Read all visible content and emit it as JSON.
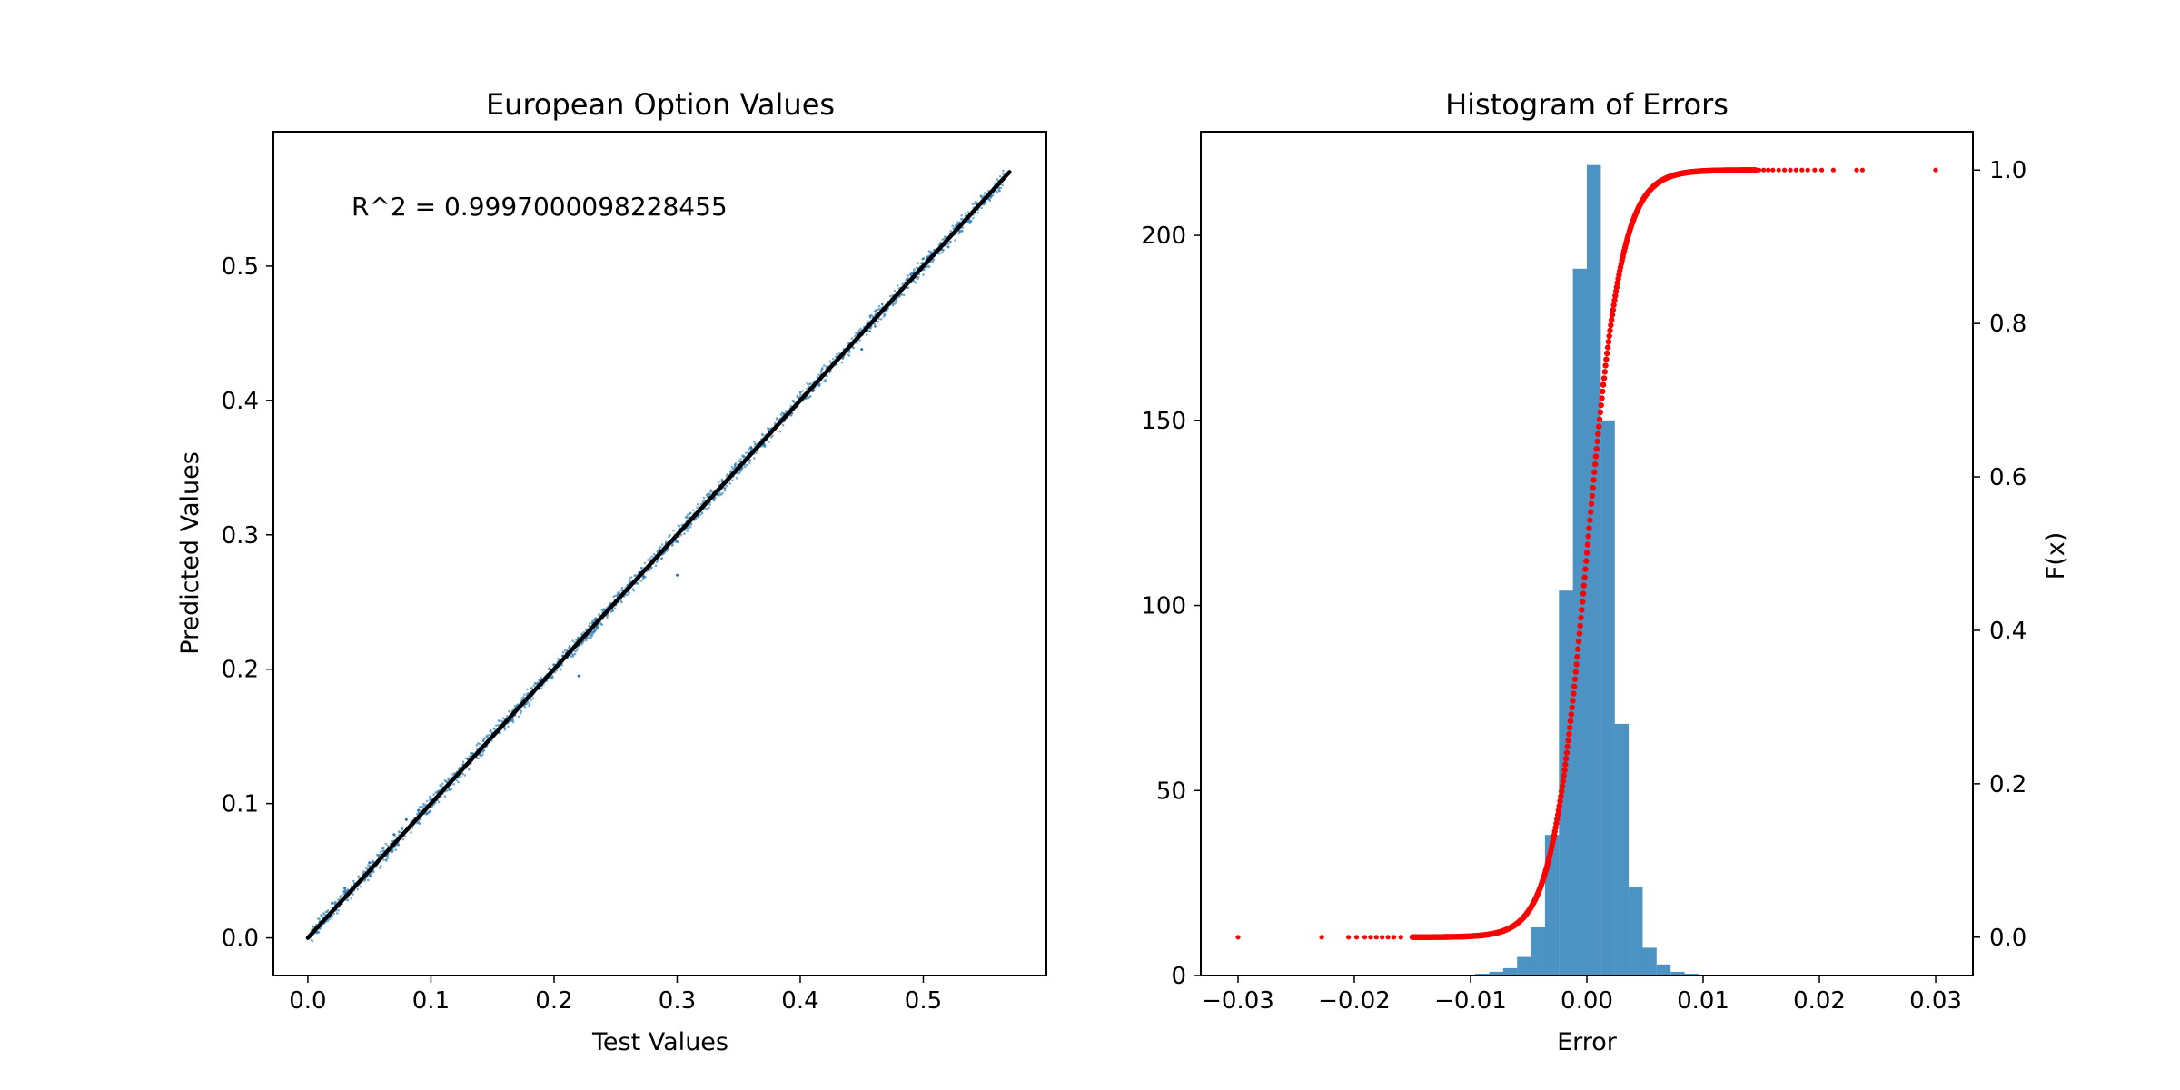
{
  "chart_data": [
    {
      "type": "scatter",
      "title": "European Option Values",
      "xlabel": "Test Values",
      "ylabel": "Predicted Values",
      "xlim": [
        -0.028,
        0.6
      ],
      "ylim": [
        -0.028,
        0.6
      ],
      "xticks": [
        0.0,
        0.1,
        0.2,
        0.3,
        0.4,
        0.5
      ],
      "yticks": [
        0.0,
        0.1,
        0.2,
        0.3,
        0.4,
        0.5
      ],
      "xtick_labels": [
        "0.0",
        "0.1",
        "0.2",
        "0.3",
        "0.4",
        "0.5"
      ],
      "ytick_labels": [
        "0.0",
        "0.1",
        "0.2",
        "0.3",
        "0.4",
        "0.5"
      ],
      "annotation": "R^2 = 0.9997000098228455",
      "scatter_color": "#1f77b4",
      "scatter_points_approx": [
        [
          0.01,
          0.012
        ],
        [
          0.02,
          0.026
        ],
        [
          0.03,
          0.037
        ],
        [
          0.05,
          0.056
        ],
        [
          0.07,
          0.077
        ],
        [
          0.09,
          0.095
        ],
        [
          0.11,
          0.112
        ],
        [
          0.13,
          0.133
        ],
        [
          0.15,
          0.152
        ],
        [
          0.17,
          0.171
        ],
        [
          0.19,
          0.188
        ],
        [
          0.21,
          0.212
        ],
        [
          0.23,
          0.231
        ],
        [
          0.25,
          0.248
        ],
        [
          0.27,
          0.272
        ],
        [
          0.29,
          0.288
        ],
        [
          0.3,
          0.27
        ],
        [
          0.31,
          0.312
        ],
        [
          0.33,
          0.329
        ],
        [
          0.35,
          0.352
        ],
        [
          0.37,
          0.368
        ],
        [
          0.39,
          0.392
        ],
        [
          0.41,
          0.407
        ],
        [
          0.43,
          0.432
        ],
        [
          0.45,
          0.449
        ],
        [
          0.47,
          0.471
        ],
        [
          0.49,
          0.488
        ],
        [
          0.51,
          0.512
        ],
        [
          0.53,
          0.529
        ],
        [
          0.55,
          0.551
        ],
        [
          0.56,
          0.559
        ],
        [
          0.22,
          0.195
        ],
        [
          0.45,
          0.438
        ],
        [
          0.08,
          0.088
        ],
        [
          0.36,
          0.365
        ]
      ],
      "fit_line": {
        "x": [
          0.0,
          0.57
        ],
        "y": [
          0.0,
          0.57
        ],
        "color": "#000000"
      }
    },
    {
      "type": "bar",
      "title": "Histogram of Errors",
      "xlabel": "Error",
      "ylabel_right": "F(x)",
      "xlim": [
        -0.0332,
        0.0332
      ],
      "ylim_left": [
        0,
        228
      ],
      "ylim_right": [
        -0.05,
        1.05
      ],
      "xticks": [
        -0.03,
        -0.02,
        -0.01,
        0.0,
        0.01,
        0.02,
        0.03
      ],
      "xtick_labels": [
        "−0.03",
        "−0.02",
        "−0.01",
        "0.00",
        "0.01",
        "0.02",
        "0.03"
      ],
      "yticks_left": [
        0,
        50,
        100,
        150,
        200
      ],
      "ytick_labels_left": [
        "0",
        "50",
        "100",
        "150",
        "200"
      ],
      "yticks_right": [
        0.0,
        0.2,
        0.4,
        0.6,
        0.8,
        1.0
      ],
      "ytick_labels_right": [
        "0.0",
        "0.2",
        "0.4",
        "0.6",
        "0.8",
        "1.0"
      ],
      "bar_color": "#1f77b4",
      "bin_edges": [
        -0.0096,
        -0.0084,
        -0.0072,
        -0.006,
        -0.0048,
        -0.0036,
        -0.0024,
        -0.0012,
        0.0,
        0.0012,
        0.0024,
        0.0036,
        0.0048,
        0.006,
        0.0072,
        0.0084,
        0.0096
      ],
      "counts": [
        0.5,
        1,
        2,
        5,
        13,
        38,
        104,
        191,
        219,
        150,
        68,
        24,
        7.5,
        3,
        1,
        0.5
      ],
      "cdf_color": "#ff0000",
      "cdf_center": 0.0,
      "cdf_scale": 0.0015,
      "cdf_range": [
        -0.015,
        0.0145
      ],
      "cdf_outliers": [
        [
          -0.03,
          0.0
        ],
        [
          -0.0228,
          0.0
        ],
        [
          -0.0205,
          0.0
        ],
        [
          -0.0198,
          0.0
        ],
        [
          -0.0191,
          0.0
        ],
        [
          -0.0186,
          0.0
        ],
        [
          -0.0181,
          0.0
        ],
        [
          -0.0176,
          0.0
        ],
        [
          -0.0171,
          0.0
        ],
        [
          -0.0166,
          0.0
        ],
        [
          -0.016,
          0.0
        ],
        [
          0.0148,
          1.0
        ],
        [
          0.0152,
          1.0
        ],
        [
          0.0156,
          1.0
        ],
        [
          0.016,
          1.0
        ],
        [
          0.0165,
          1.0
        ],
        [
          0.017,
          1.0
        ],
        [
          0.0175,
          1.0
        ],
        [
          0.018,
          1.0
        ],
        [
          0.0185,
          1.0
        ],
        [
          0.019,
          1.0
        ],
        [
          0.0196,
          1.0
        ],
        [
          0.0202,
          1.0
        ],
        [
          0.0212,
          1.0
        ],
        [
          0.0232,
          1.0
        ],
        [
          0.0237,
          1.0
        ],
        [
          0.03,
          1.0
        ]
      ]
    }
  ]
}
